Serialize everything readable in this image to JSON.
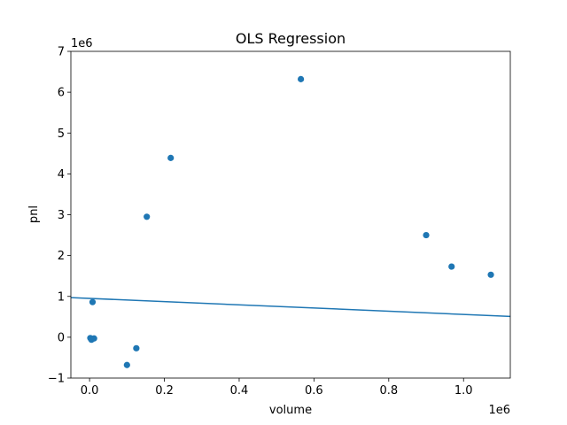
{
  "chart_data": {
    "type": "scatter",
    "title": "OLS Regression",
    "xlabel": "volume",
    "ylabel": "pnl",
    "x_offset_label": "1e6",
    "y_offset_label": "1e6",
    "xlim": [
      -50000,
      1125000
    ],
    "ylim": [
      -1000000,
      7000000
    ],
    "x_ticks": [
      0,
      200000,
      400000,
      600000,
      800000,
      1000000
    ],
    "x_tick_labels": [
      "0.0",
      "0.2",
      "0.4",
      "0.6",
      "0.8",
      "1.0"
    ],
    "y_ticks": [
      -1000000,
      0,
      1000000,
      2000000,
      3000000,
      4000000,
      5000000,
      6000000,
      7000000
    ],
    "y_tick_labels": [
      "−1",
      "0",
      "1",
      "2",
      "3",
      "4",
      "5",
      "6",
      "7"
    ],
    "grid": false,
    "color": "#1f77b4",
    "series": [
      {
        "x": [
          2000,
          5000,
          12000,
          8000,
          100000,
          125000,
          153000,
          217000,
          565000,
          900000,
          968000,
          1073000
        ],
        "y": [
          -20000,
          -60000,
          -30000,
          860000,
          -680000,
          -270000,
          2950000,
          4390000,
          6320000,
          2500000,
          1730000,
          1530000
        ]
      }
    ],
    "regression_line": {
      "x": [
        -50000,
        1125000
      ],
      "y": [
        970000,
        510000
      ]
    }
  }
}
